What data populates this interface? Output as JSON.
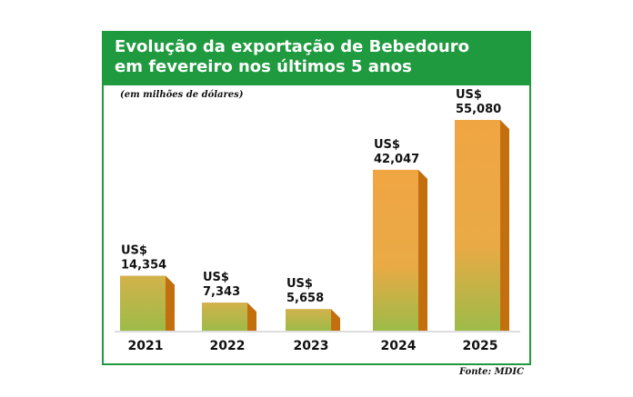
{
  "title_line1": "Evolução da exportação de Bebedouro",
  "title_line2": "em fevereiro nos últimos 5 anos",
  "unit_note": "(em milhões de dólares)",
  "source": "Fonte: MDIC",
  "colors": {
    "header": "#1f9a3f",
    "bar_top": "#f0a543",
    "bar_bottom": "#9dbb48",
    "bar_side": "#c46f0e",
    "bar_cap": "#e8a044"
  },
  "chart_data": {
    "type": "bar",
    "title": "Evolução da exportação de Bebedouro em fevereiro nos últimos 5 anos",
    "ylabel": "(em milhões de dólares)",
    "categories": [
      "2021",
      "2022",
      "2023",
      "2024",
      "2025"
    ],
    "values": [
      14.354,
      7.343,
      5.658,
      42.047,
      55.08
    ],
    "labels": [
      {
        "currency": "US$",
        "amount": "14,354"
      },
      {
        "currency": "US$",
        "amount": "7,343"
      },
      {
        "currency": "US$",
        "amount": "5,658"
      },
      {
        "currency": "US$",
        "amount": "42,047"
      },
      {
        "currency": "US$",
        "amount": "55,080"
      }
    ],
    "ylim": [
      0,
      55.08
    ]
  }
}
